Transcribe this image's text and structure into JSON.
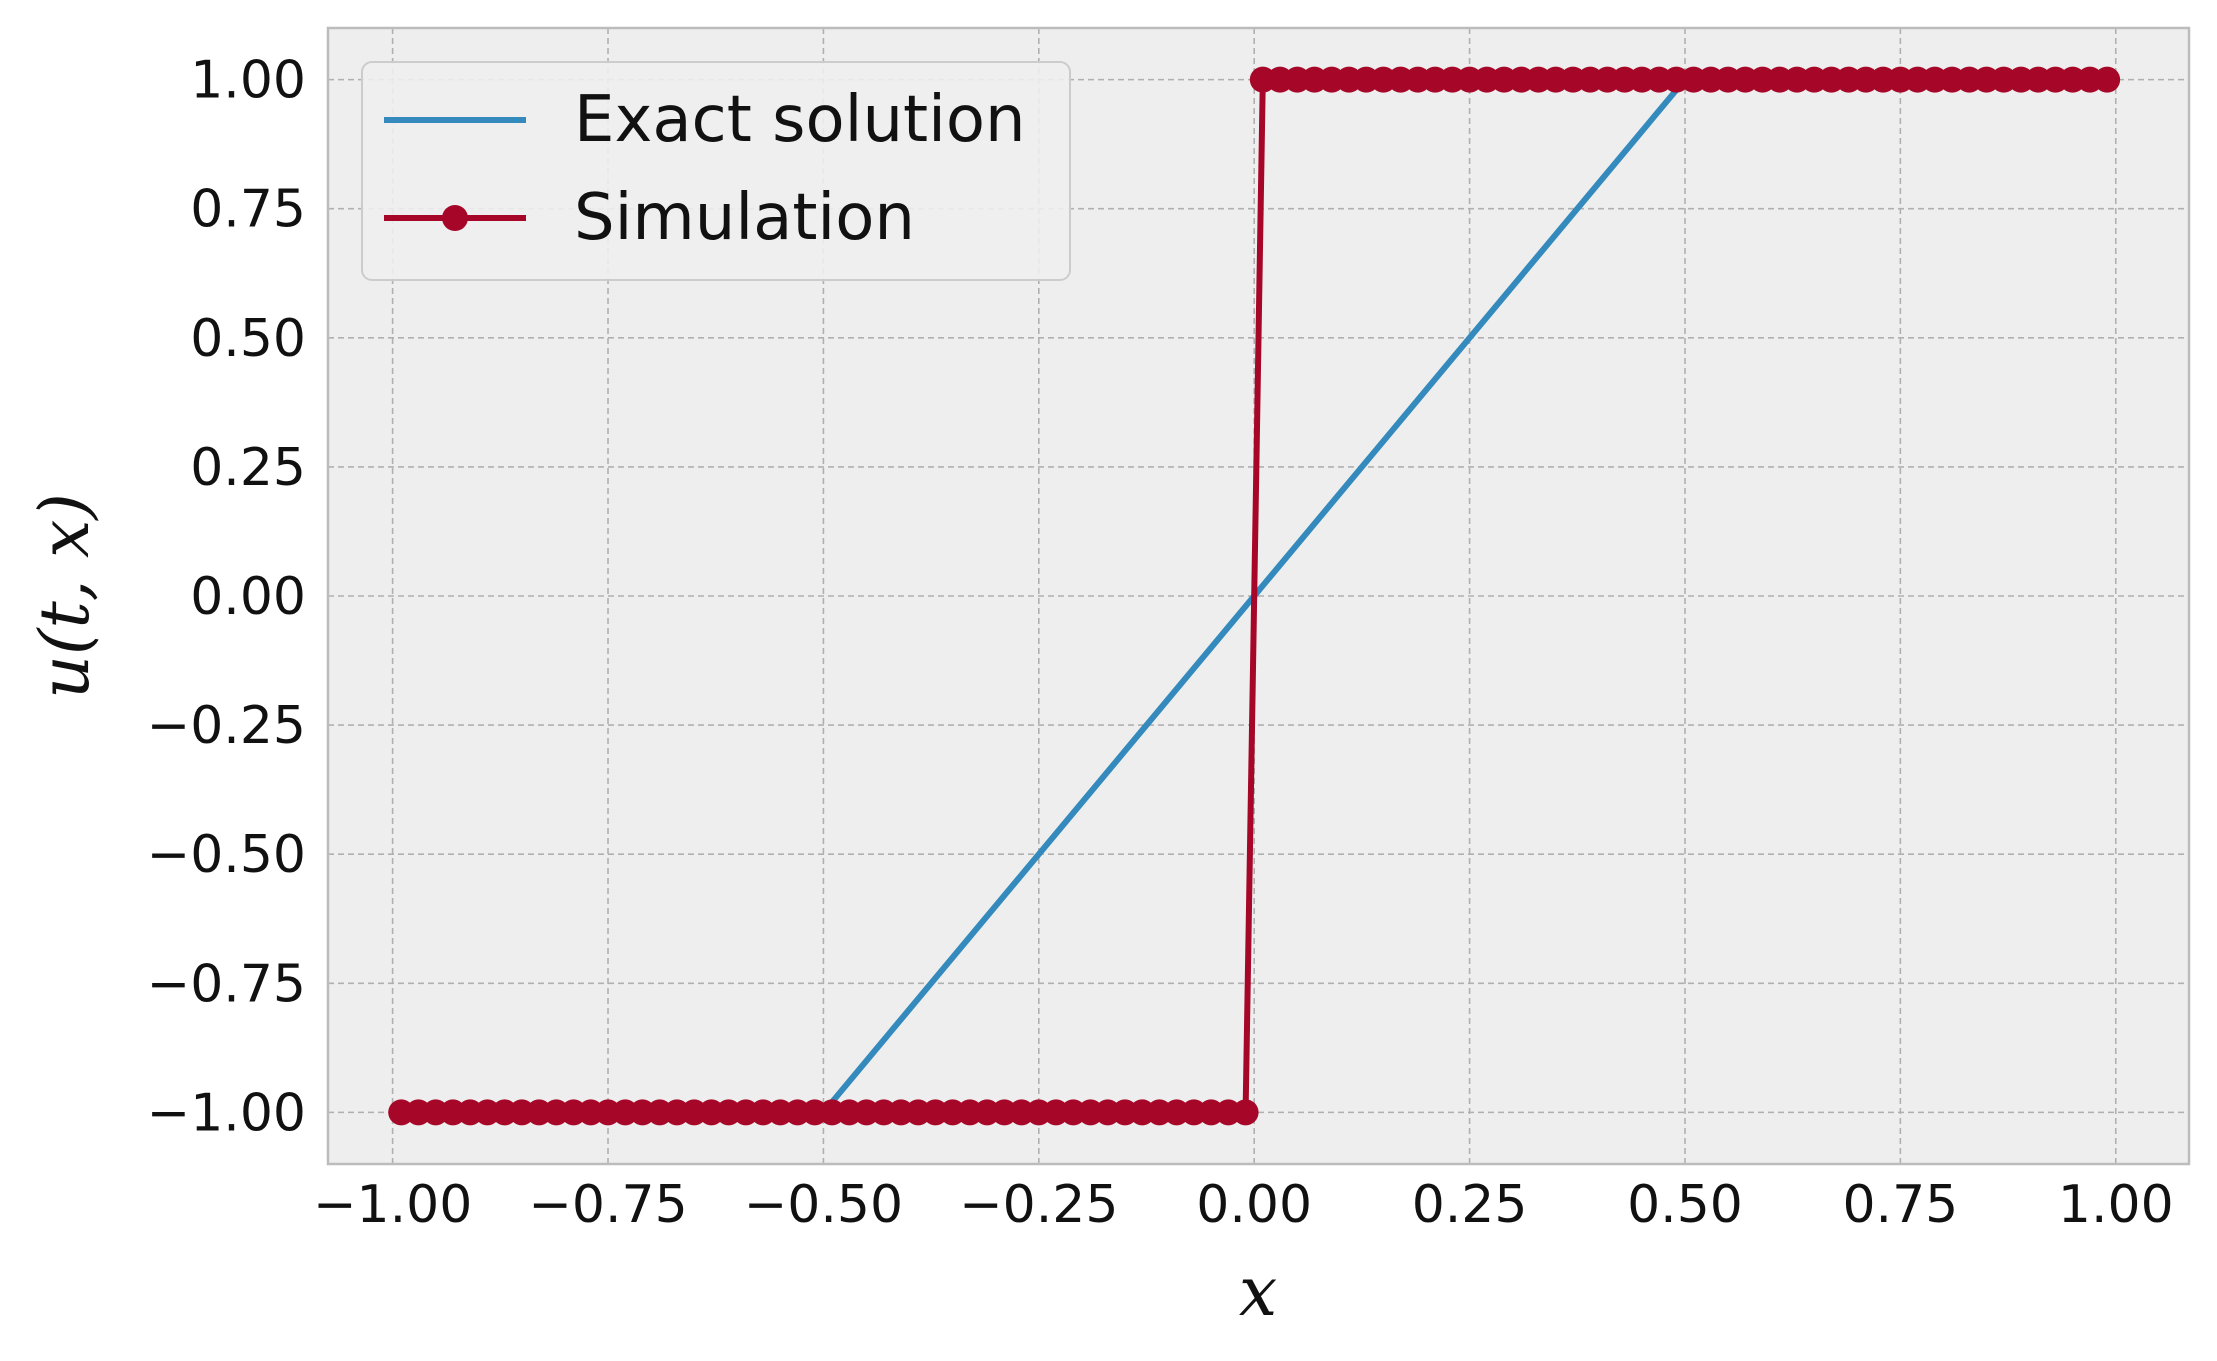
{
  "chart_data": {
    "type": "line",
    "xlabel": "x",
    "ylabel": "u(t, x)",
    "xlim": [
      -1.075,
      1.085
    ],
    "ylim": [
      -1.1,
      1.1
    ],
    "xticks": [
      -1.0,
      -0.75,
      -0.5,
      -0.25,
      0.0,
      0.25,
      0.5,
      0.75,
      1.0
    ],
    "yticks": [
      1.0,
      0.75,
      0.5,
      0.25,
      0.0,
      -0.25,
      -0.5,
      -0.75,
      -1.0
    ],
    "grid": true,
    "legend_position": "top-left",
    "colors": {
      "exact": "#348abd",
      "simulation": "#a60628",
      "background": "#eeeeee",
      "frame": "#bcbcbc"
    },
    "series": [
      {
        "name": "Exact solution",
        "marker": "none",
        "x": [
          -1.0,
          -0.5,
          0.5,
          1.0
        ],
        "y": [
          -1.0,
          -1.0,
          1.0,
          1.0
        ]
      },
      {
        "name": "Simulation",
        "marker": "circle",
        "x": [
          -0.99,
          -0.97,
          -0.95,
          -0.93,
          -0.91,
          -0.89,
          -0.87,
          -0.85,
          -0.83,
          -0.81,
          -0.79,
          -0.77,
          -0.75,
          -0.73,
          -0.71,
          -0.69,
          -0.67,
          -0.65,
          -0.63,
          -0.61,
          -0.59,
          -0.57,
          -0.55,
          -0.53,
          -0.51,
          -0.49,
          -0.47,
          -0.45,
          -0.43,
          -0.41,
          -0.39,
          -0.37,
          -0.35,
          -0.33,
          -0.31,
          -0.29,
          -0.27,
          -0.25,
          -0.23,
          -0.21,
          -0.19,
          -0.17,
          -0.15,
          -0.13,
          -0.11,
          -0.09,
          -0.07,
          -0.05,
          -0.03,
          -0.01,
          0.01,
          0.03,
          0.05,
          0.07,
          0.09,
          0.11,
          0.13,
          0.15,
          0.17,
          0.19,
          0.21,
          0.23,
          0.25,
          0.27,
          0.29,
          0.31,
          0.33,
          0.35,
          0.37,
          0.39,
          0.41,
          0.43,
          0.45,
          0.47,
          0.49,
          0.51,
          0.53,
          0.55,
          0.57,
          0.59,
          0.61,
          0.63,
          0.65,
          0.67,
          0.69,
          0.71,
          0.73,
          0.75,
          0.77,
          0.79,
          0.81,
          0.83,
          0.85,
          0.87,
          0.89,
          0.91,
          0.93,
          0.95,
          0.97,
          0.99
        ],
        "y": [
          -1.0,
          -1.0,
          -1.0,
          -1.0,
          -1.0,
          -1.0,
          -1.0,
          -1.0,
          -1.0,
          -1.0,
          -1.0,
          -1.0,
          -1.0,
          -1.0,
          -1.0,
          -1.0,
          -1.0,
          -1.0,
          -1.0,
          -1.0,
          -1.0,
          -1.0,
          -1.0,
          -1.0,
          -1.0,
          -1.0,
          -1.0,
          -1.0,
          -1.0,
          -1.0,
          -1.0,
          -1.0,
          -1.0,
          -1.0,
          -1.0,
          -1.0,
          -1.0,
          -1.0,
          -1.0,
          -1.0,
          -1.0,
          -1.0,
          -1.0,
          -1.0,
          -1.0,
          -1.0,
          -1.0,
          -1.0,
          -1.0,
          -1.0,
          1.0,
          1.0,
          1.0,
          1.0,
          1.0,
          1.0,
          1.0,
          1.0,
          1.0,
          1.0,
          1.0,
          1.0,
          1.0,
          1.0,
          1.0,
          1.0,
          1.0,
          1.0,
          1.0,
          1.0,
          1.0,
          1.0,
          1.0,
          1.0,
          1.0,
          1.0,
          1.0,
          1.0,
          1.0,
          1.0,
          1.0,
          1.0,
          1.0,
          1.0,
          1.0,
          1.0,
          1.0,
          1.0,
          1.0,
          1.0,
          1.0,
          1.0,
          1.0,
          1.0,
          1.0,
          1.0,
          1.0,
          1.0,
          1.0,
          1.0
        ]
      }
    ]
  }
}
